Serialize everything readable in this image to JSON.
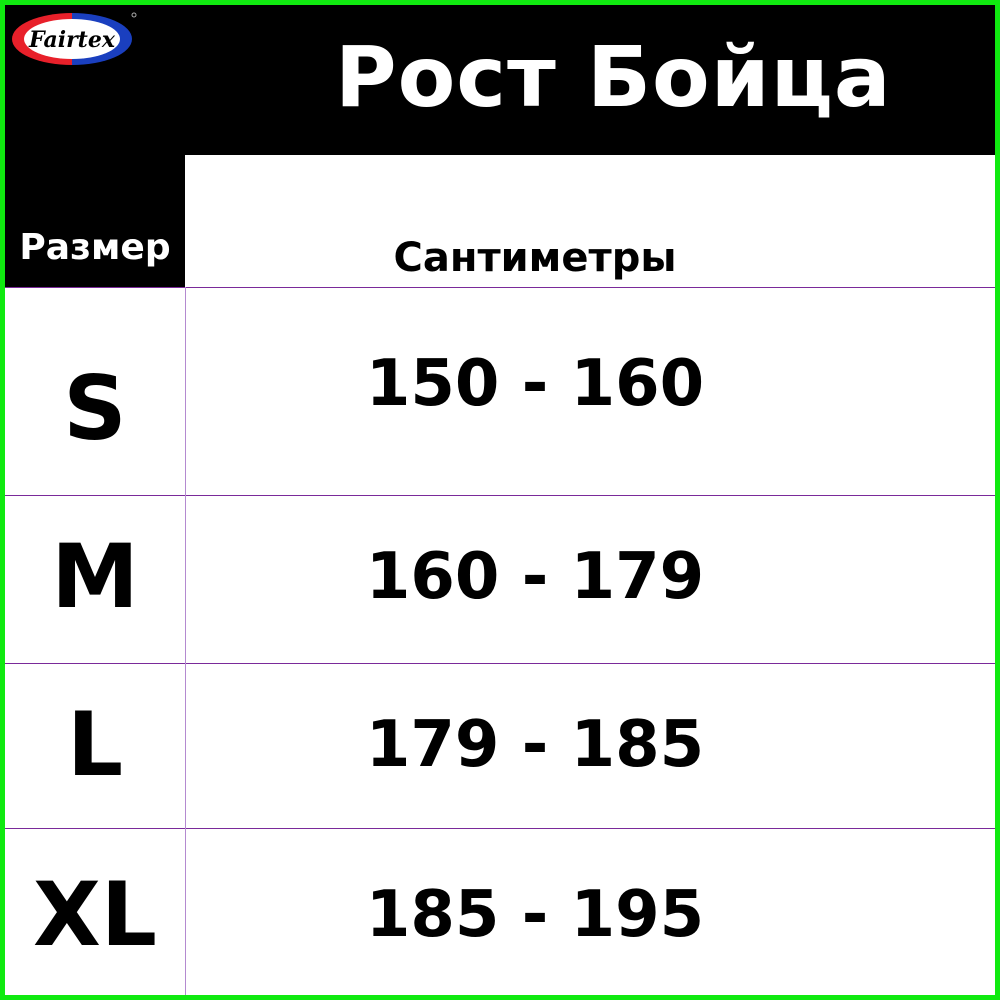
{
  "brand": {
    "logo_text": "Fairtex",
    "colors": {
      "red": "#e8202a",
      "blue": "#1a3fbf",
      "frame": "#10ea10"
    }
  },
  "title": "Рост Бойца",
  "headers": {
    "size": "Размер",
    "centimeters": "Сантиметры"
  },
  "rows": [
    {
      "size": "S",
      "range": "150 - 160"
    },
    {
      "size": "M",
      "range": "160 - 179"
    },
    {
      "size": "L",
      "range": "179 - 185"
    },
    {
      "size": "XL",
      "range": "185 - 195"
    }
  ]
}
